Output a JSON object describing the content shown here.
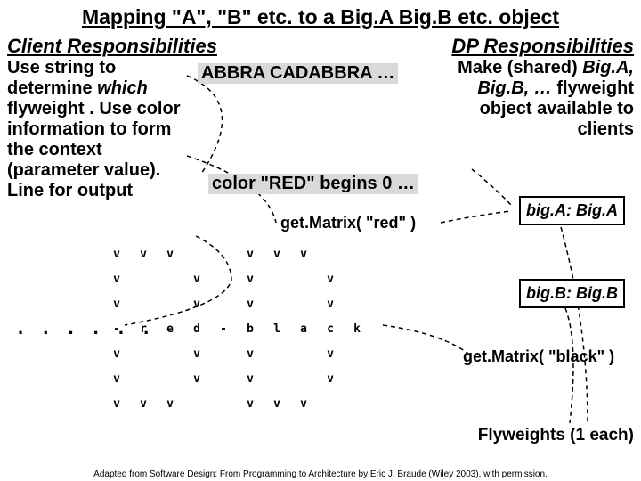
{
  "title": "Mapping \"A\", \"B\" etc. to a Big.A Big.B etc. object",
  "subtitles": {
    "client": "Client Responsibilities",
    "dp": "DP Responsibilities"
  },
  "client_text": "Use string to determine <i>which</i> flyweight . Use color information to form the context (parameter value). Line for output",
  "dp_text": "Make (shared) <i>Big.A, Big.B, …</i> flyweight object available to clients",
  "gray1": "ABBRA CADABBRA …",
  "gray2": "color \"RED\" begins 0 …",
  "getred": "get.Matrix( \"red\" )",
  "getblack": "get.Matrix( \"black\" )",
  "box_a": "big.A: Big.A",
  "box_b": "big.B: Big.B",
  "flylabel": "Flyweights (1 each)",
  "dots": ". . . . . .",
  "grid": [
    [
      "v",
      "v",
      "v",
      "",
      "",
      "v",
      "v",
      "v",
      "",
      ""
    ],
    [
      "v",
      "",
      "",
      "v",
      "",
      "v",
      "",
      "",
      "v",
      ""
    ],
    [
      "v",
      "",
      "",
      "v",
      "",
      "v",
      "",
      "",
      "v",
      ""
    ],
    [
      "-",
      "r",
      "e",
      "d",
      "-",
      "b",
      "l",
      "a",
      "c",
      "k"
    ],
    [
      "v",
      "",
      "",
      "v",
      "",
      "v",
      "",
      "",
      "v",
      ""
    ],
    [
      "v",
      "",
      "",
      "v",
      "",
      "v",
      "",
      "",
      "v",
      ""
    ],
    [
      "v",
      "v",
      "v",
      "",
      "",
      "v",
      "v",
      "v",
      "",
      ""
    ]
  ],
  "credit": "Adapted from Software Design: From Programming to Architecture by Eric J. Braude (Wiley 2003), with permission.",
  "dash_color": "#000000"
}
